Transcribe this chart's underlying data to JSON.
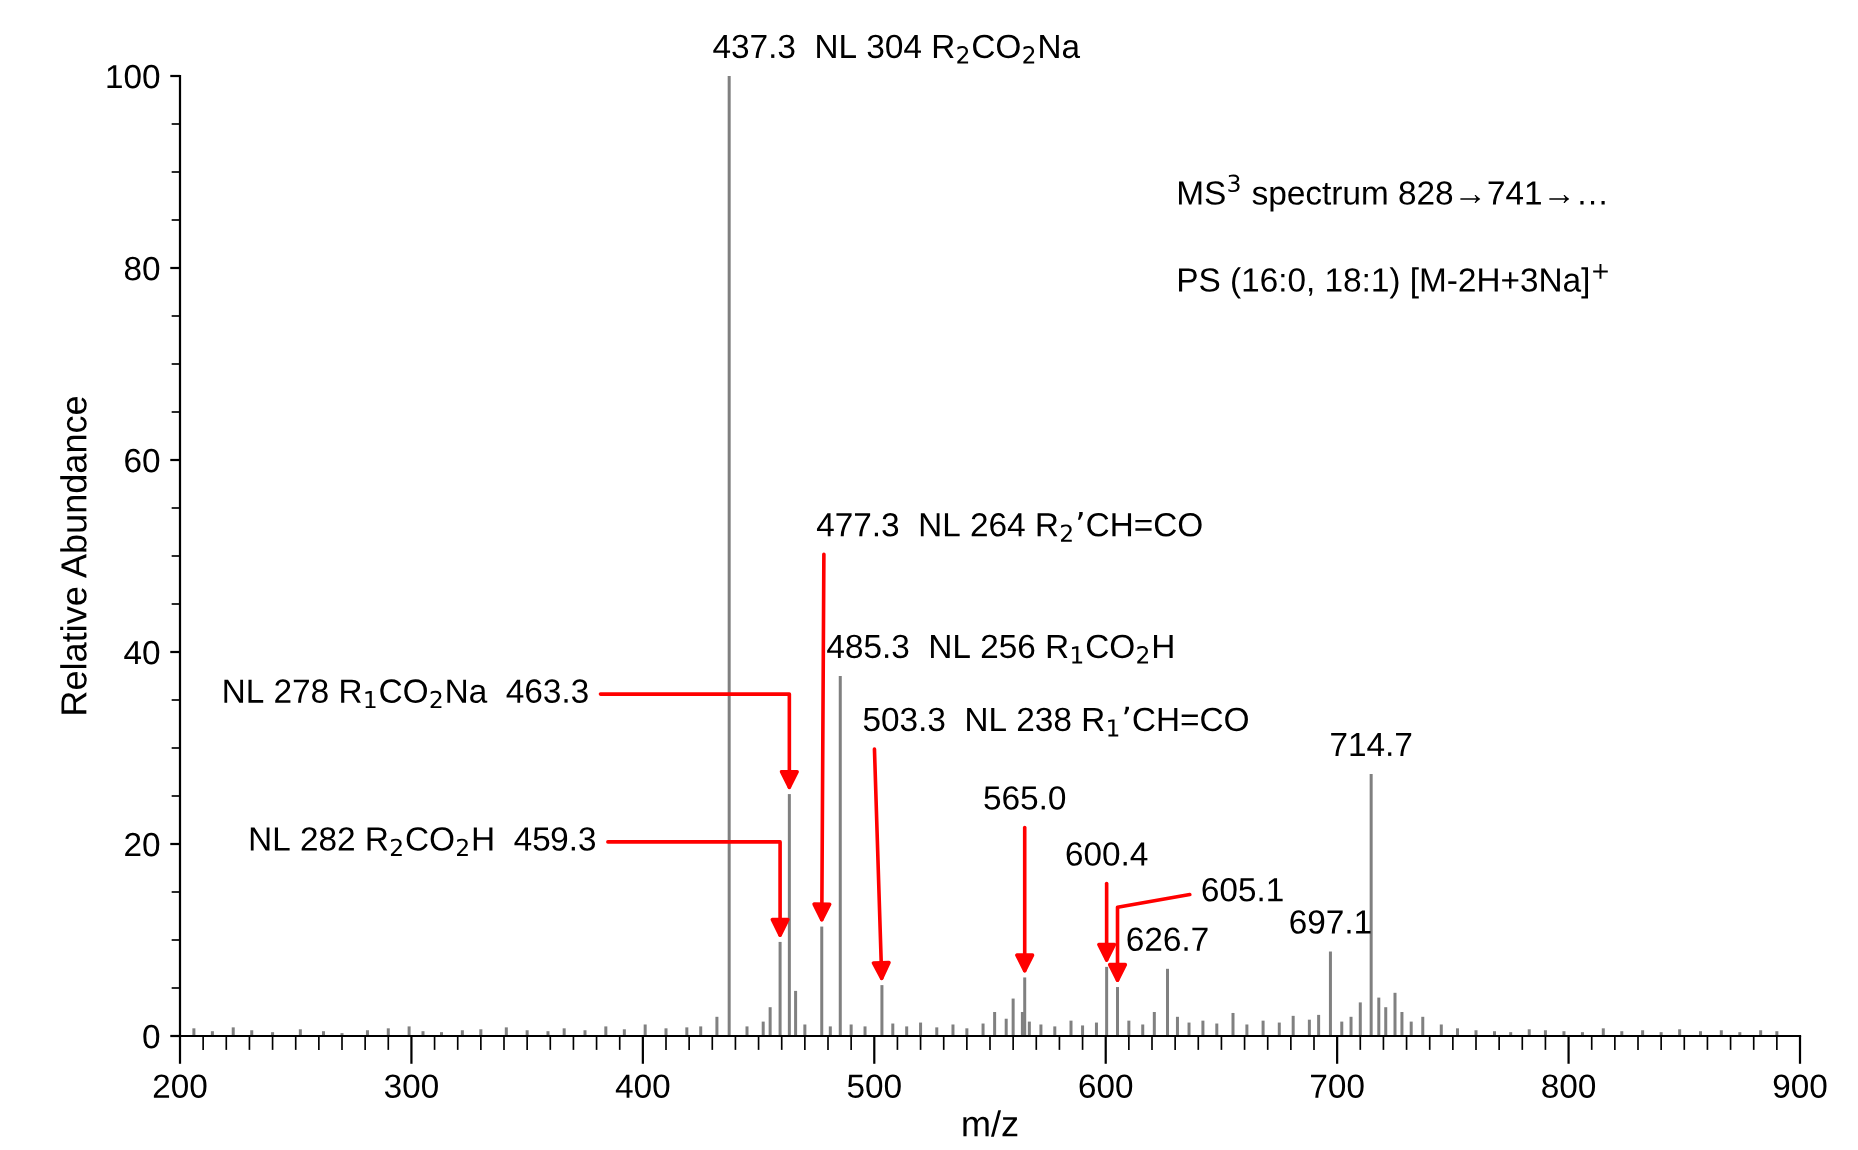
{
  "chart_data": {
    "type": "bar",
    "xlabel": "m/z",
    "ylabel": "Relative Abundance",
    "x": [
      206,
      214,
      223,
      231,
      240,
      252,
      262,
      270,
      281,
      290,
      299,
      305,
      313,
      322,
      330,
      341,
      350,
      359,
      366,
      375,
      384,
      392,
      401,
      410,
      419,
      425,
      432,
      437.3,
      445,
      452,
      455,
      459.3,
      463.3,
      466,
      470,
      477.3,
      481,
      485.3,
      490,
      496,
      503.3,
      508,
      514,
      520,
      527,
      534,
      540,
      547,
      552,
      557,
      560,
      564,
      565.0,
      567,
      572,
      578,
      585,
      590,
      596,
      600.4,
      605.1,
      610,
      616,
      621,
      626.7,
      631,
      636,
      642,
      648,
      655,
      661,
      668,
      675,
      681,
      688,
      692,
      697.1,
      702,
      706,
      710,
      714.7,
      718,
      721,
      725,
      728,
      732,
      737,
      745,
      752,
      760,
      768,
      775,
      783,
      790,
      798,
      806,
      815,
      823,
      832,
      840,
      848,
      857,
      866,
      874,
      883,
      890
    ],
    "values": [
      0.8,
      0.5,
      0.9,
      0.6,
      0.4,
      0.7,
      0.5,
      0.3,
      0.6,
      0.8,
      1.0,
      0.5,
      0.4,
      0.6,
      0.7,
      0.9,
      0.6,
      0.5,
      0.8,
      0.6,
      1.0,
      0.7,
      1.2,
      0.8,
      0.9,
      1.0,
      2.0,
      100,
      1.0,
      1.5,
      3.0,
      9.8,
      25.2,
      4.7,
      1.2,
      11.4,
      1.0,
      37.5,
      1.2,
      1.0,
      5.3,
      1.3,
      1.0,
      1.4,
      0.9,
      1.2,
      0.8,
      1.3,
      2.5,
      1.8,
      3.9,
      2.5,
      6.1,
      1.5,
      1.2,
      1.0,
      1.6,
      1.1,
      1.4,
      7.2,
      5.1,
      1.6,
      1.2,
      2.5,
      7.0,
      2.0,
      1.4,
      1.6,
      1.3,
      2.4,
      1.2,
      1.6,
      1.4,
      2.1,
      1.7,
      2.2,
      8.8,
      1.5,
      2.0,
      3.5,
      27.3,
      4.0,
      3.0,
      4.5,
      2.5,
      1.5,
      2.0,
      1.2,
      0.8,
      0.6,
      0.5,
      0.4,
      0.7,
      0.6,
      0.5,
      0.4,
      0.8,
      0.5,
      0.6,
      0.4,
      0.7,
      0.5,
      0.6,
      0.4,
      0.6,
      0.5
    ],
    "color": "#808080",
    "xlim": [
      200,
      900
    ],
    "xticks": [
      200,
      300,
      400,
      500,
      600,
      700,
      800,
      900
    ],
    "ylim": [
      0,
      100
    ],
    "yticks": [
      0,
      20,
      40,
      60,
      80,
      100
    ],
    "grid": false,
    "legend": false,
    "annotations": [
      {
        "text": "437.3  NL 304 R$_{2}$CO$_{2}$Na",
        "x": 437.3,
        "y": 100
      },
      {
        "text": "477.3  NL 264 R$_{2}$’CH=CO",
        "x": 477.3,
        "y": 11.4
      },
      {
        "text": "485.3  NL 256 R$_{1}$CO$_{2}$H",
        "x": 485.3,
        "y": 37.5
      },
      {
        "text": "503.3  NL 238 R$_{1}$’CH=CO",
        "x": 503.3,
        "y": 5.3
      },
      {
        "text": "NL 278 R$_{1}$CO$_{2}$Na  463.3",
        "x": 463.3,
        "y": 25.2
      },
      {
        "text": "NL 282 R$_{2}$CO$_{2}$H  459.3",
        "x": 459.3,
        "y": 9.8
      },
      {
        "text": "565.0",
        "x": 565.0,
        "y": 6.1
      },
      {
        "text": "600.4",
        "x": 600.4,
        "y": 7.2
      },
      {
        "text": "605.1",
        "x": 605.1,
        "y": 5.1
      },
      {
        "text": "626.7",
        "x": 626.7,
        "y": 7.0
      },
      {
        "text": "697.1",
        "x": 697.1,
        "y": 8.8
      },
      {
        "text": "714.7",
        "x": 714.7,
        "y": 27.3
      },
      "MS$^{3}$ spectrum 828→741→…",
      "PS (16:0, 18:1) [M-2H+3Na]$^{+}$"
    ]
  }
}
